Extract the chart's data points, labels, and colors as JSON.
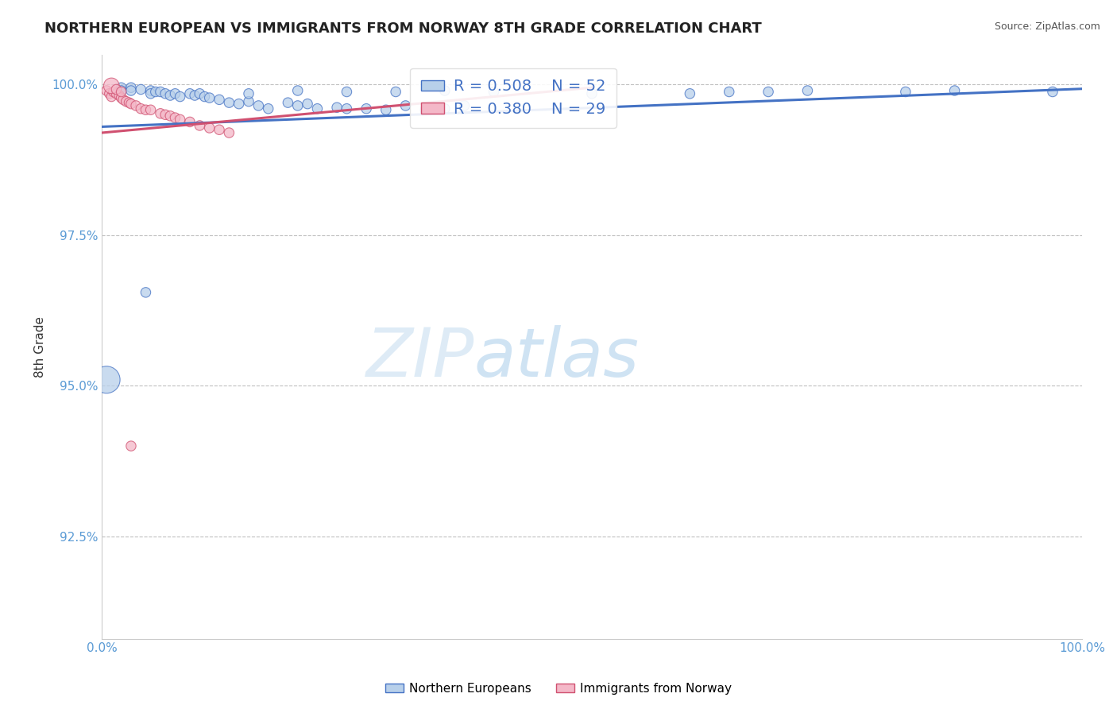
{
  "title": "NORTHERN EUROPEAN VS IMMIGRANTS FROM NORWAY 8TH GRADE CORRELATION CHART",
  "source": "Source: ZipAtlas.com",
  "ylabel": "8th Grade",
  "xlim": [
    0,
    1.0
  ],
  "ylim": [
    0.908,
    1.005
  ],
  "yticks": [
    0.925,
    0.95,
    0.975,
    1.0
  ],
  "ytick_labels": [
    "92.5%",
    "95.0%",
    "97.5%",
    "100.0%"
  ],
  "xticks": [
    0.0,
    1.0
  ],
  "xtick_labels": [
    "0.0%",
    "100.0%"
  ],
  "legend_r_blue": "R = 0.508",
  "legend_n_blue": "N = 52",
  "legend_r_pink": "R = 0.380",
  "legend_n_pink": "N = 29",
  "blue_fill": "#b8d0ea",
  "blue_edge": "#4472c4",
  "pink_fill": "#f4b8c8",
  "pink_edge": "#d05070",
  "blue_line": "#4472c4",
  "pink_line": "#d05070",
  "watermark_zip": "ZIP",
  "watermark_atlas": "atlas",
  "blue_x": [
    0.02,
    0.02,
    0.03,
    0.03,
    0.04,
    0.05,
    0.05,
    0.055,
    0.06,
    0.065,
    0.07,
    0.075,
    0.08,
    0.09,
    0.095,
    0.1,
    0.105,
    0.11,
    0.12,
    0.13,
    0.14,
    0.15,
    0.16,
    0.17,
    0.19,
    0.2,
    0.21,
    0.22,
    0.24,
    0.25,
    0.27,
    0.29,
    0.31,
    0.33,
    0.35,
    0.37,
    0.15,
    0.2,
    0.25,
    0.3,
    0.35,
    0.4,
    0.5,
    0.6,
    0.64,
    0.68,
    0.72,
    0.82,
    0.87,
    0.97,
    0.005,
    0.045
  ],
  "blue_y": [
    0.9995,
    0.999,
    0.9995,
    0.999,
    0.9992,
    0.999,
    0.9985,
    0.9988,
    0.9988,
    0.9985,
    0.9982,
    0.9985,
    0.998,
    0.9985,
    0.9982,
    0.9985,
    0.998,
    0.9978,
    0.9975,
    0.997,
    0.9968,
    0.9972,
    0.9965,
    0.996,
    0.997,
    0.9965,
    0.9968,
    0.996,
    0.9962,
    0.996,
    0.996,
    0.9958,
    0.9965,
    0.9958,
    0.996,
    0.9965,
    0.9985,
    0.999,
    0.9988,
    0.9988,
    0.999,
    0.9988,
    0.9985,
    0.9985,
    0.9988,
    0.9988,
    0.999,
    0.9988,
    0.999,
    0.9988,
    0.951,
    0.9655
  ],
  "blue_sizes": [
    80,
    80,
    80,
    80,
    80,
    80,
    80,
    80,
    80,
    80,
    80,
    80,
    80,
    80,
    80,
    80,
    80,
    80,
    80,
    80,
    80,
    80,
    80,
    80,
    80,
    80,
    80,
    80,
    80,
    80,
    80,
    80,
    80,
    80,
    80,
    80,
    80,
    80,
    80,
    80,
    80,
    80,
    80,
    80,
    80,
    80,
    80,
    80,
    80,
    80,
    600,
    80
  ],
  "pink_x": [
    0.005,
    0.008,
    0.01,
    0.012,
    0.015,
    0.018,
    0.02,
    0.022,
    0.025,
    0.028,
    0.03,
    0.035,
    0.04,
    0.045,
    0.05,
    0.06,
    0.065,
    0.07,
    0.075,
    0.08,
    0.09,
    0.1,
    0.11,
    0.12,
    0.01,
    0.015,
    0.02,
    0.13,
    0.03
  ],
  "pink_y": [
    0.999,
    0.9985,
    0.998,
    0.9988,
    0.9985,
    0.9982,
    0.9978,
    0.9975,
    0.9972,
    0.997,
    0.9968,
    0.9965,
    0.996,
    0.9958,
    0.9958,
    0.9952,
    0.995,
    0.9948,
    0.9945,
    0.9942,
    0.9938,
    0.9932,
    0.9928,
    0.9925,
    0.9998,
    0.9992,
    0.9988,
    0.992,
    0.94
  ],
  "pink_sizes": [
    80,
    80,
    80,
    80,
    80,
    80,
    80,
    80,
    80,
    80,
    80,
    80,
    80,
    80,
    80,
    80,
    80,
    80,
    80,
    80,
    80,
    80,
    80,
    80,
    200,
    80,
    80,
    80,
    80
  ]
}
